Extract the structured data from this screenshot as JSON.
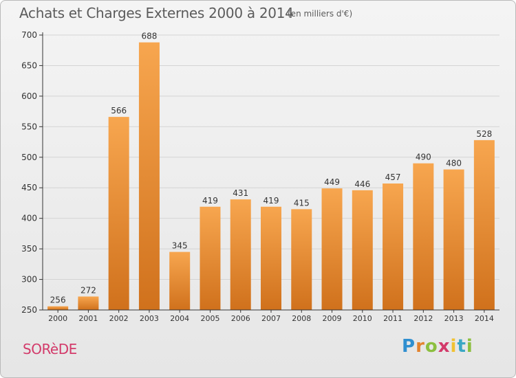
{
  "header": {
    "title": "Achats et Charges Externes 2000 à 2014",
    "subtitle": "(en milliers d'€)"
  },
  "footer": {
    "place": "SORèDE",
    "brand": "Proxiti"
  },
  "colors": {
    "bar_light": "#f7a64f",
    "bar_dark": "#d0711c",
    "grid": "#d4d4d4",
    "axis": "#333333",
    "text": "#333333"
  },
  "chart_data": {
    "type": "bar",
    "categories": [
      "2000",
      "2001",
      "2002",
      "2003",
      "2004",
      "2005",
      "2006",
      "2007",
      "2008",
      "2009",
      "2010",
      "2011",
      "2012",
      "2013",
      "2014"
    ],
    "values": [
      256,
      272,
      566,
      688,
      345,
      419,
      431,
      419,
      415,
      449,
      446,
      457,
      490,
      480,
      528
    ],
    "title": "Achats et Charges Externes 2000 à 2014",
    "subtitle": "(en milliers d'€)",
    "xlabel": "",
    "ylabel": "",
    "ylim": [
      250,
      700
    ],
    "yticks": [
      250,
      300,
      350,
      400,
      450,
      500,
      550,
      600,
      650,
      700
    ],
    "grid": true,
    "data_labels": true
  }
}
